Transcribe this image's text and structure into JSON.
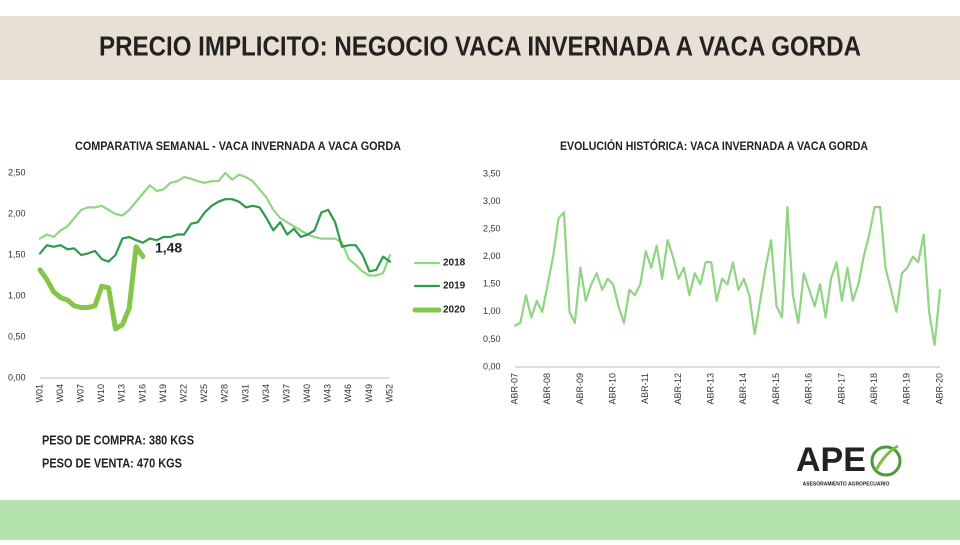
{
  "title": "PRECIO IMPLICITO: NEGOCIO VACA INVERNADA A VACA GORDA",
  "notes": [
    "PESO DE COMPRA: 380 KGS",
    "PESO DE VENTA: 470 KGS"
  ],
  "logo": {
    "name": "APE",
    "tagline": "ASESORAMIENTO AGROPECUARIO"
  },
  "chart_data": [
    {
      "type": "line",
      "title": "COMPARATIVA SEMANAL - VACA INVERNADA A VACA GORDA",
      "grid": false,
      "legend": "right",
      "categories": [
        "W01",
        null,
        null,
        "W04",
        null,
        null,
        "W07",
        null,
        null,
        "W10",
        null,
        null,
        "W13",
        null,
        null,
        "W16",
        null,
        null,
        "W19",
        null,
        null,
        "W22",
        null,
        null,
        "W25",
        null,
        null,
        "W28",
        null,
        null,
        "W31",
        null,
        null,
        "W34",
        null,
        null,
        "W37",
        null,
        null,
        "W40",
        null,
        null,
        "W43",
        null,
        null,
        "W46",
        null,
        null,
        "W49",
        null,
        null,
        "W52"
      ],
      "ylim": [
        0,
        2.5
      ],
      "yticks": [
        {
          "value": 0,
          "label": "0,00"
        },
        {
          "value": 0.5,
          "label": "0,50"
        },
        {
          "value": 1,
          "label": "1,00"
        },
        {
          "value": 1.5,
          "label": "1,50"
        },
        {
          "value": 2,
          "label": "2,00"
        },
        {
          "value": 2.5,
          "label": "2,50"
        }
      ],
      "series": [
        {
          "name": "2018",
          "color": "#8fd582",
          "values": [
            1.7,
            1.75,
            1.72,
            1.8,
            1.85,
            1.95,
            2.05,
            2.08,
            2.08,
            2.1,
            2.05,
            2.0,
            1.98,
            2.05,
            2.15,
            2.25,
            2.35,
            2.28,
            2.3,
            2.38,
            2.4,
            2.45,
            2.43,
            2.4,
            2.38,
            2.4,
            2.4,
            2.5,
            2.42,
            2.48,
            2.45,
            2.4,
            2.3,
            2.2,
            2.05,
            1.95,
            1.9,
            1.85,
            1.8,
            1.75,
            1.72,
            1.7,
            1.7,
            1.7,
            1.65,
            1.45,
            1.38,
            1.3,
            1.25,
            1.25,
            1.28,
            1.5
          ]
        },
        {
          "name": "2019",
          "color": "#2e9a4a",
          "values": [
            1.52,
            1.62,
            1.6,
            1.62,
            1.57,
            1.58,
            1.5,
            1.52,
            1.55,
            1.45,
            1.42,
            1.5,
            1.7,
            1.72,
            1.68,
            1.65,
            1.7,
            1.68,
            1.72,
            1.72,
            1.75,
            1.75,
            1.88,
            1.9,
            2.02,
            2.1,
            2.15,
            2.18,
            2.18,
            2.15,
            2.08,
            2.1,
            2.08,
            1.95,
            1.8,
            1.9,
            1.75,
            1.82,
            1.72,
            1.75,
            1.8,
            2.02,
            2.05,
            1.9,
            1.6,
            1.62,
            1.62,
            1.5,
            1.3,
            1.32,
            1.48,
            1.42
          ]
        },
        {
          "name": "2020",
          "color": "#86c44a",
          "width": 5,
          "values": [
            1.32,
            1.2,
            1.05,
            0.98,
            0.95,
            0.88,
            0.86,
            0.86,
            0.88,
            1.12,
            1.1,
            0.6,
            0.65,
            0.85,
            1.6,
            1.48,
            null,
            null,
            null,
            null,
            null,
            null,
            null,
            null,
            null,
            null,
            null,
            null,
            null,
            null,
            null,
            null,
            null,
            null,
            null,
            null,
            null,
            null,
            null,
            null,
            null,
            null,
            null,
            null,
            null,
            null,
            null,
            null,
            null,
            null,
            null,
            null
          ],
          "value_labels": [
            null,
            null,
            null,
            null,
            null,
            null,
            null,
            null,
            null,
            null,
            null,
            null,
            null,
            null,
            null,
            "1,48",
            null,
            null,
            null,
            null,
            null,
            null,
            null,
            null,
            null,
            null,
            null,
            null,
            null,
            null,
            null,
            null,
            null,
            null,
            null,
            null,
            null,
            null,
            null,
            null,
            null,
            null,
            null,
            null,
            null,
            null,
            null,
            null,
            null,
            null,
            null,
            null
          ]
        }
      ]
    },
    {
      "type": "line",
      "title": "EVOLUCIÓN HISTÓRICA: VACA INVERNADA A VACA GORDA",
      "grid": false,
      "categories": [
        "ABR-07",
        null,
        null,
        null,
        null,
        null,
        "ABR-08",
        null,
        null,
        null,
        null,
        null,
        "ABR-09",
        null,
        null,
        null,
        null,
        null,
        "ABR-10",
        null,
        null,
        null,
        null,
        null,
        "ABR-11",
        null,
        null,
        null,
        null,
        null,
        "ABR-12",
        null,
        null,
        null,
        null,
        null,
        "ABR-13",
        null,
        null,
        null,
        null,
        null,
        "ABR-14",
        null,
        null,
        null,
        null,
        null,
        "ABR-15",
        null,
        null,
        null,
        null,
        null,
        "ABR-16",
        null,
        null,
        null,
        null,
        null,
        "ABR-17",
        null,
        null,
        null,
        null,
        null,
        "ABR-18",
        null,
        null,
        null,
        null,
        null,
        "ABR-19",
        null,
        null,
        null,
        null,
        null,
        "ABR-20"
      ],
      "ylim": [
        0,
        3.5
      ],
      "yticks": [
        {
          "value": 0,
          "label": "0,00"
        },
        {
          "value": 0.5,
          "label": "0,50"
        },
        {
          "value": 1,
          "label": "1,00"
        },
        {
          "value": 1.5,
          "label": "1,50"
        },
        {
          "value": 2,
          "label": "2,00"
        },
        {
          "value": 2.5,
          "label": "2,50"
        },
        {
          "value": 3,
          "label": "3,00"
        },
        {
          "value": 3.5,
          "label": "3,50"
        }
      ],
      "series": [
        {
          "color": "#8fd582",
          "values": [
            0.75,
            0.8,
            1.3,
            0.9,
            1.2,
            1.0,
            1.5,
            2.0,
            2.7,
            2.8,
            1.0,
            0.8,
            1.8,
            1.2,
            1.5,
            1.7,
            1.4,
            1.6,
            1.5,
            1.1,
            0.8,
            1.4,
            1.3,
            1.5,
            2.1,
            1.8,
            2.2,
            1.6,
            2.3,
            2.0,
            1.6,
            1.8,
            1.3,
            1.7,
            1.5,
            1.9,
            1.9,
            1.2,
            1.6,
            1.5,
            1.9,
            1.4,
            1.6,
            1.3,
            0.6,
            1.2,
            1.8,
            2.3,
            1.1,
            0.9,
            2.9,
            1.3,
            0.8,
            1.7,
            1.4,
            1.1,
            1.5,
            0.9,
            1.6,
            1.9,
            1.2,
            1.8,
            1.2,
            1.5,
            2.0,
            2.4,
            2.9,
            2.9,
            1.8,
            1.4,
            1.0,
            1.7,
            1.8,
            2.0,
            1.9,
            2.4,
            1.0,
            0.4,
            1.4
          ]
        }
      ]
    }
  ]
}
